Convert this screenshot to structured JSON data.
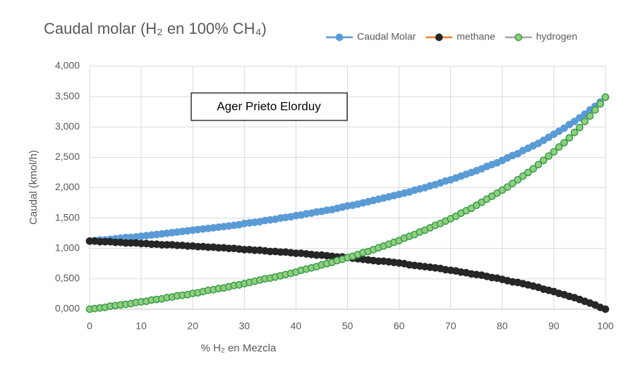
{
  "chart_data": {
    "type": "line",
    "title": "Caudal molar (H₂ en 100% CH₄)",
    "annotation": "Ager Prieto Elorduy",
    "x_label": "% H₂ en Mezcla",
    "y_label": "Caudal (kmol/h)",
    "x": [
      0,
      1,
      2,
      3,
      4,
      5,
      6,
      7,
      8,
      9,
      10,
      11,
      12,
      13,
      14,
      15,
      16,
      17,
      18,
      19,
      20,
      21,
      22,
      23,
      24,
      25,
      26,
      27,
      28,
      29,
      30,
      31,
      32,
      33,
      34,
      35,
      36,
      37,
      38,
      39,
      40,
      41,
      42,
      43,
      44,
      45,
      46,
      47,
      48,
      49,
      50,
      51,
      52,
      53,
      54,
      55,
      56,
      57,
      58,
      59,
      60,
      61,
      62,
      63,
      64,
      65,
      66,
      67,
      68,
      69,
      70,
      71,
      72,
      73,
      74,
      75,
      76,
      77,
      78,
      79,
      80,
      81,
      82,
      83,
      84,
      85,
      86,
      87,
      88,
      89,
      90,
      91,
      92,
      93,
      94,
      95,
      96,
      97,
      98,
      99,
      100
    ],
    "series": [
      {
        "name": "Caudal Molar",
        "color": "#5b9bd5",
        "marker_fill": "#5b9bd5",
        "marker_stroke": "#5b9bd5",
        "values": [
          1.12,
          1.13,
          1.14,
          1.14,
          1.15,
          1.16,
          1.17,
          1.18,
          1.18,
          1.19,
          1.2,
          1.21,
          1.22,
          1.23,
          1.24,
          1.25,
          1.26,
          1.27,
          1.28,
          1.29,
          1.3,
          1.31,
          1.32,
          1.33,
          1.34,
          1.35,
          1.36,
          1.37,
          1.38,
          1.39,
          1.41,
          1.42,
          1.43,
          1.44,
          1.46,
          1.47,
          1.48,
          1.5,
          1.51,
          1.52,
          1.54,
          1.55,
          1.57,
          1.58,
          1.6,
          1.61,
          1.63,
          1.64,
          1.66,
          1.68,
          1.7,
          1.71,
          1.73,
          1.75,
          1.77,
          1.79,
          1.81,
          1.83,
          1.85,
          1.87,
          1.89,
          1.91,
          1.93,
          1.96,
          1.98,
          2.0,
          2.03,
          2.05,
          2.08,
          2.11,
          2.13,
          2.16,
          2.19,
          2.22,
          2.25,
          2.28,
          2.31,
          2.35,
          2.38,
          2.41,
          2.45,
          2.49,
          2.53,
          2.56,
          2.61,
          2.65,
          2.69,
          2.73,
          2.78,
          2.83,
          2.88,
          2.93,
          2.98,
          3.04,
          3.09,
          3.15,
          3.21,
          3.28,
          3.34,
          3.41,
          3.49
        ]
      },
      {
        "name": "methane",
        "color": "#ed7d31",
        "marker_fill": "#262626",
        "marker_stroke": "#262626",
        "values": [
          1.12,
          1.12,
          1.11,
          1.11,
          1.11,
          1.1,
          1.1,
          1.09,
          1.09,
          1.09,
          1.08,
          1.08,
          1.07,
          1.07,
          1.06,
          1.06,
          1.06,
          1.05,
          1.05,
          1.04,
          1.04,
          1.03,
          1.03,
          1.02,
          1.02,
          1.01,
          1.01,
          1.0,
          1.0,
          0.99,
          0.98,
          0.98,
          0.97,
          0.97,
          0.96,
          0.95,
          0.95,
          0.94,
          0.94,
          0.93,
          0.92,
          0.92,
          0.91,
          0.9,
          0.89,
          0.89,
          0.88,
          0.87,
          0.86,
          0.86,
          0.85,
          0.84,
          0.83,
          0.82,
          0.81,
          0.8,
          0.79,
          0.79,
          0.78,
          0.77,
          0.76,
          0.75,
          0.73,
          0.72,
          0.71,
          0.7,
          0.69,
          0.68,
          0.67,
          0.65,
          0.64,
          0.63,
          0.61,
          0.6,
          0.58,
          0.57,
          0.56,
          0.54,
          0.52,
          0.51,
          0.49,
          0.47,
          0.45,
          0.44,
          0.42,
          0.4,
          0.38,
          0.36,
          0.33,
          0.31,
          0.29,
          0.26,
          0.24,
          0.21,
          0.19,
          0.16,
          0.13,
          0.1,
          0.07,
          0.03,
          0
        ]
      },
      {
        "name": "hydrogen",
        "color": "#a5a5a5",
        "marker_fill": "#8fcf7f",
        "marker_stroke": "#3c9b4c",
        "values": [
          0,
          0.01,
          0.02,
          0.03,
          0.05,
          0.06,
          0.07,
          0.08,
          0.09,
          0.11,
          0.12,
          0.13,
          0.15,
          0.16,
          0.17,
          0.19,
          0.2,
          0.22,
          0.23,
          0.24,
          0.26,
          0.27,
          0.29,
          0.31,
          0.32,
          0.34,
          0.35,
          0.37,
          0.39,
          0.4,
          0.42,
          0.44,
          0.46,
          0.48,
          0.5,
          0.51,
          0.53,
          0.55,
          0.57,
          0.59,
          0.61,
          0.64,
          0.66,
          0.68,
          0.7,
          0.73,
          0.75,
          0.77,
          0.8,
          0.82,
          0.85,
          0.87,
          0.9,
          0.93,
          0.95,
          0.98,
          1.01,
          1.04,
          1.07,
          1.1,
          1.13,
          1.17,
          1.2,
          1.23,
          1.27,
          1.3,
          1.34,
          1.38,
          1.41,
          1.45,
          1.49,
          1.53,
          1.58,
          1.62,
          1.66,
          1.71,
          1.76,
          1.81,
          1.86,
          1.91,
          1.96,
          2.01,
          2.07,
          2.13,
          2.19,
          2.25,
          2.31,
          2.38,
          2.45,
          2.52,
          2.59,
          2.67,
          2.74,
          2.82,
          2.91,
          2.99,
          3.09,
          3.18,
          3.28,
          3.38,
          3.49
        ]
      }
    ],
    "xlim": [
      0,
      100
    ],
    "xticks": [
      0,
      10,
      20,
      30,
      40,
      50,
      60,
      70,
      80,
      90,
      100
    ],
    "ylim": [
      0,
      4
    ],
    "yticks": [
      {
        "value": 0,
        "label": "0,000"
      },
      {
        "value": 0.5,
        "label": "0,500"
      },
      {
        "value": 1,
        "label": "1,000"
      },
      {
        "value": 1.5,
        "label": "1,500"
      },
      {
        "value": 2,
        "label": "2,000"
      },
      {
        "value": 2.5,
        "label": "2,500"
      },
      {
        "value": 3,
        "label": "3,000"
      },
      {
        "value": 3.5,
        "label": "3,500"
      },
      {
        "value": 4,
        "label": "4,000"
      }
    ],
    "grid": true,
    "legend": "top-right"
  }
}
